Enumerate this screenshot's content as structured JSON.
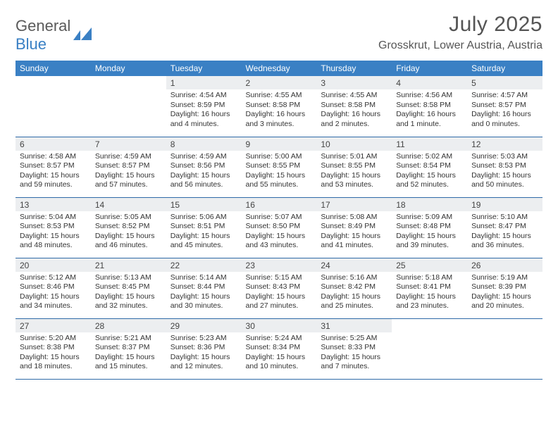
{
  "brand": {
    "word1": "General",
    "word2": "Blue",
    "mark_color": "#3a80c4"
  },
  "title": {
    "month": "July 2025",
    "location": "Grosskrut, Lower Austria, Austria"
  },
  "colors": {
    "header_bg": "#3a80c4",
    "header_text": "#ffffff",
    "row_border": "#2f6aa8",
    "shade_bg": "#eceef0",
    "text": "#333333"
  },
  "weekdays": [
    "Sunday",
    "Monday",
    "Tuesday",
    "Wednesday",
    "Thursday",
    "Friday",
    "Saturday"
  ],
  "weeks": [
    [
      {
        "empty": true
      },
      {
        "empty": true
      },
      {
        "n": "1",
        "sr": "Sunrise: 4:54 AM",
        "ss": "Sunset: 8:59 PM",
        "dl": "Daylight: 16 hours and 4 minutes."
      },
      {
        "n": "2",
        "sr": "Sunrise: 4:55 AM",
        "ss": "Sunset: 8:58 PM",
        "dl": "Daylight: 16 hours and 3 minutes."
      },
      {
        "n": "3",
        "sr": "Sunrise: 4:55 AM",
        "ss": "Sunset: 8:58 PM",
        "dl": "Daylight: 16 hours and 2 minutes."
      },
      {
        "n": "4",
        "sr": "Sunrise: 4:56 AM",
        "ss": "Sunset: 8:58 PM",
        "dl": "Daylight: 16 hours and 1 minute."
      },
      {
        "n": "5",
        "sr": "Sunrise: 4:57 AM",
        "ss": "Sunset: 8:57 PM",
        "dl": "Daylight: 16 hours and 0 minutes."
      }
    ],
    [
      {
        "n": "6",
        "sr": "Sunrise: 4:58 AM",
        "ss": "Sunset: 8:57 PM",
        "dl": "Daylight: 15 hours and 59 minutes."
      },
      {
        "n": "7",
        "sr": "Sunrise: 4:59 AM",
        "ss": "Sunset: 8:57 PM",
        "dl": "Daylight: 15 hours and 57 minutes."
      },
      {
        "n": "8",
        "sr": "Sunrise: 4:59 AM",
        "ss": "Sunset: 8:56 PM",
        "dl": "Daylight: 15 hours and 56 minutes."
      },
      {
        "n": "9",
        "sr": "Sunrise: 5:00 AM",
        "ss": "Sunset: 8:55 PM",
        "dl": "Daylight: 15 hours and 55 minutes."
      },
      {
        "n": "10",
        "sr": "Sunrise: 5:01 AM",
        "ss": "Sunset: 8:55 PM",
        "dl": "Daylight: 15 hours and 53 minutes."
      },
      {
        "n": "11",
        "sr": "Sunrise: 5:02 AM",
        "ss": "Sunset: 8:54 PM",
        "dl": "Daylight: 15 hours and 52 minutes."
      },
      {
        "n": "12",
        "sr": "Sunrise: 5:03 AM",
        "ss": "Sunset: 8:53 PM",
        "dl": "Daylight: 15 hours and 50 minutes."
      }
    ],
    [
      {
        "n": "13",
        "sr": "Sunrise: 5:04 AM",
        "ss": "Sunset: 8:53 PM",
        "dl": "Daylight: 15 hours and 48 minutes."
      },
      {
        "n": "14",
        "sr": "Sunrise: 5:05 AM",
        "ss": "Sunset: 8:52 PM",
        "dl": "Daylight: 15 hours and 46 minutes."
      },
      {
        "n": "15",
        "sr": "Sunrise: 5:06 AM",
        "ss": "Sunset: 8:51 PM",
        "dl": "Daylight: 15 hours and 45 minutes."
      },
      {
        "n": "16",
        "sr": "Sunrise: 5:07 AM",
        "ss": "Sunset: 8:50 PM",
        "dl": "Daylight: 15 hours and 43 minutes."
      },
      {
        "n": "17",
        "sr": "Sunrise: 5:08 AM",
        "ss": "Sunset: 8:49 PM",
        "dl": "Daylight: 15 hours and 41 minutes."
      },
      {
        "n": "18",
        "sr": "Sunrise: 5:09 AM",
        "ss": "Sunset: 8:48 PM",
        "dl": "Daylight: 15 hours and 39 minutes."
      },
      {
        "n": "19",
        "sr": "Sunrise: 5:10 AM",
        "ss": "Sunset: 8:47 PM",
        "dl": "Daylight: 15 hours and 36 minutes."
      }
    ],
    [
      {
        "n": "20",
        "sr": "Sunrise: 5:12 AM",
        "ss": "Sunset: 8:46 PM",
        "dl": "Daylight: 15 hours and 34 minutes."
      },
      {
        "n": "21",
        "sr": "Sunrise: 5:13 AM",
        "ss": "Sunset: 8:45 PM",
        "dl": "Daylight: 15 hours and 32 minutes."
      },
      {
        "n": "22",
        "sr": "Sunrise: 5:14 AM",
        "ss": "Sunset: 8:44 PM",
        "dl": "Daylight: 15 hours and 30 minutes."
      },
      {
        "n": "23",
        "sr": "Sunrise: 5:15 AM",
        "ss": "Sunset: 8:43 PM",
        "dl": "Daylight: 15 hours and 27 minutes."
      },
      {
        "n": "24",
        "sr": "Sunrise: 5:16 AM",
        "ss": "Sunset: 8:42 PM",
        "dl": "Daylight: 15 hours and 25 minutes."
      },
      {
        "n": "25",
        "sr": "Sunrise: 5:18 AM",
        "ss": "Sunset: 8:41 PM",
        "dl": "Daylight: 15 hours and 23 minutes."
      },
      {
        "n": "26",
        "sr": "Sunrise: 5:19 AM",
        "ss": "Sunset: 8:39 PM",
        "dl": "Daylight: 15 hours and 20 minutes."
      }
    ],
    [
      {
        "n": "27",
        "sr": "Sunrise: 5:20 AM",
        "ss": "Sunset: 8:38 PM",
        "dl": "Daylight: 15 hours and 18 minutes."
      },
      {
        "n": "28",
        "sr": "Sunrise: 5:21 AM",
        "ss": "Sunset: 8:37 PM",
        "dl": "Daylight: 15 hours and 15 minutes."
      },
      {
        "n": "29",
        "sr": "Sunrise: 5:23 AM",
        "ss": "Sunset: 8:36 PM",
        "dl": "Daylight: 15 hours and 12 minutes."
      },
      {
        "n": "30",
        "sr": "Sunrise: 5:24 AM",
        "ss": "Sunset: 8:34 PM",
        "dl": "Daylight: 15 hours and 10 minutes."
      },
      {
        "n": "31",
        "sr": "Sunrise: 5:25 AM",
        "ss": "Sunset: 8:33 PM",
        "dl": "Daylight: 15 hours and 7 minutes."
      },
      {
        "empty": true
      },
      {
        "empty": true
      }
    ]
  ]
}
